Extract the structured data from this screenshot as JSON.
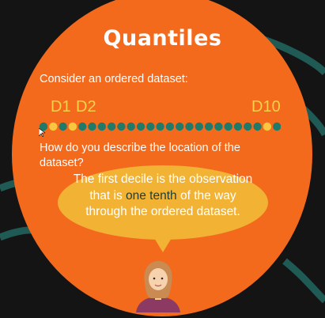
{
  "slide": {
    "title": "Quantiles",
    "intro": "Consider an ordered dataset:",
    "labels": {
      "d1": "D1",
      "d2": "D2",
      "d10": "D10"
    },
    "dots": {
      "count": 25,
      "highlighted": [
        2,
        4,
        24
      ]
    },
    "question": "How do you describe the location of the dataset?",
    "bubble": {
      "before": "The first decile is the observation that is ",
      "highlight": "one tenth",
      "after": " of the way through the ordered dataset."
    }
  },
  "colors": {
    "background": "#141414",
    "disc": "#f36a1d",
    "dot": "#1f7a6a",
    "dot_highlight": "#f7c740",
    "label": "#f7d04a",
    "bubble": "#f2b233",
    "highlight_text": "#1f3d35",
    "arcs": "#1f5a55"
  },
  "icons": [
    "presenter-avatar-icon",
    "cursor-icon"
  ]
}
